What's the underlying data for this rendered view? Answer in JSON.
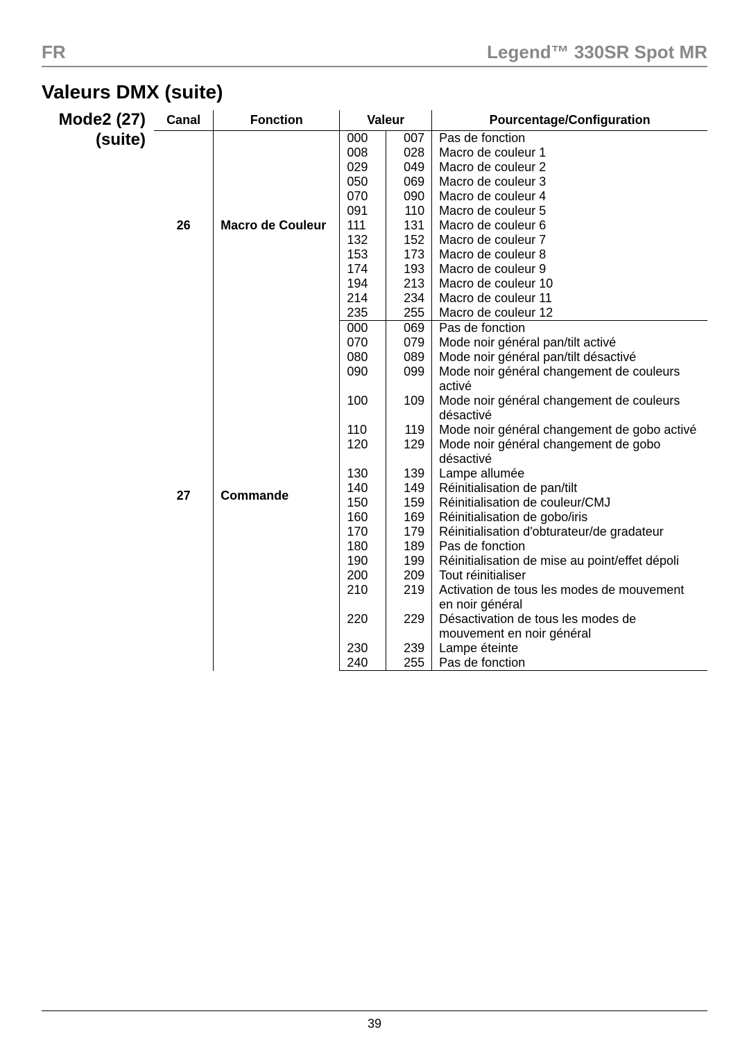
{
  "header": {
    "lang": "FR",
    "product": "Legend™ 330SR Spot MR"
  },
  "section_title": "Valeurs DMX (suite)",
  "mode_label": "Mode2 (27) (suite)",
  "table": {
    "headers": {
      "canal": "Canal",
      "fonction": "Fonction",
      "valeur": "Valeur",
      "config": "Pourcentage/Configuration"
    },
    "groups": [
      {
        "canal": "26",
        "fonction": "Macro de Couleur",
        "rows": [
          {
            "a": "000",
            "b": "007",
            "c": "Pas de fonction"
          },
          {
            "a": "008",
            "b": "028",
            "c": "Macro de couleur 1"
          },
          {
            "a": "029",
            "b": "049",
            "c": "Macro de couleur 2"
          },
          {
            "a": "050",
            "b": "069",
            "c": "Macro de couleur 3"
          },
          {
            "a": "070",
            "b": "090",
            "c": "Macro de couleur 4"
          },
          {
            "a": "091",
            "b": "110",
            "c": "Macro de couleur 5"
          },
          {
            "a": "111",
            "b": "131",
            "c": "Macro de couleur 6"
          },
          {
            "a": "132",
            "b": "152",
            "c": "Macro de couleur 7"
          },
          {
            "a": "153",
            "b": "173",
            "c": "Macro de couleur 8"
          },
          {
            "a": "174",
            "b": "193",
            "c": "Macro de couleur 9"
          },
          {
            "a": "194",
            "b": "213",
            "c": "Macro de couleur 10"
          },
          {
            "a": "214",
            "b": "234",
            "c": "Macro de couleur 11"
          },
          {
            "a": "235",
            "b": "255",
            "c": "Macro de couleur 12"
          }
        ]
      },
      {
        "canal": "27",
        "fonction": "Commande",
        "rows": [
          {
            "a": "000",
            "b": "069",
            "c": "Pas de fonction"
          },
          {
            "a": "070",
            "b": "079",
            "c": "Mode noir général pan/tilt activé"
          },
          {
            "a": "080",
            "b": "089",
            "c": "Mode noir général pan/tilt désactivé"
          },
          {
            "a": "090",
            "b": "099",
            "c": "Mode noir général changement de couleurs activé"
          },
          {
            "a": "100",
            "b": "109",
            "c": "Mode noir général changement de couleurs désactivé"
          },
          {
            "a": "110",
            "b": "119",
            "c": "Mode noir général changement de gobo activé"
          },
          {
            "a": "120",
            "b": "129",
            "c": "Mode noir général changement de gobo désactivé"
          },
          {
            "a": "130",
            "b": "139",
            "c": "Lampe allumée"
          },
          {
            "a": "140",
            "b": "149",
            "c": "Réinitialisation de pan/tilt"
          },
          {
            "a": "150",
            "b": "159",
            "c": "Réinitialisation de couleur/CMJ"
          },
          {
            "a": "160",
            "b": "169",
            "c": "Réinitialisation de gobo/iris"
          },
          {
            "a": "170",
            "b": "179",
            "c": "Réinitialisation d'obturateur/de gradateur"
          },
          {
            "a": "180",
            "b": "189",
            "c": "Pas de fonction"
          },
          {
            "a": "190",
            "b": "199",
            "c": "Réinitialisation de mise au point/effet dépoli"
          },
          {
            "a": "200",
            "b": "209",
            "c": "Tout réinitialiser"
          },
          {
            "a": "210",
            "b": "219",
            "c": "Activation de tous les modes de mouvement en noir général"
          },
          {
            "a": "220",
            "b": "229",
            "c": "Désactivation de tous les modes de mouvement en noir général"
          },
          {
            "a": "230",
            "b": "239",
            "c": "Lampe éteinte"
          },
          {
            "a": "240",
            "b": "255",
            "c": "Pas de fonction"
          }
        ]
      }
    ]
  },
  "page_number": "39"
}
